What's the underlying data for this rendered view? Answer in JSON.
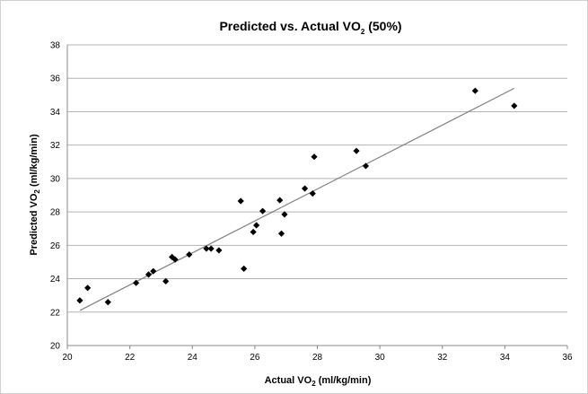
{
  "chart_data": {
    "type": "scatter",
    "title": {
      "main": "Predicted vs. Actual VO",
      "sub": "2",
      "suffix": " (50%)"
    },
    "xlabel": {
      "main": "Actual VO",
      "sub": "2",
      "suffix": " (ml/kg/min)"
    },
    "ylabel": {
      "main": "Predicted VO",
      "sub": "2",
      "suffix": " (ml/kg/min)"
    },
    "xlim": [
      20,
      36
    ],
    "ylim": [
      20,
      38
    ],
    "x_ticks": [
      "20",
      "22",
      "24",
      "26",
      "28",
      "30",
      "32",
      "34",
      "36"
    ],
    "y_ticks": [
      "20",
      "22",
      "24",
      "26",
      "28",
      "30",
      "32",
      "34",
      "36",
      "38"
    ],
    "grid": "horizontal",
    "legend": "none",
    "marker": "diamond",
    "colors": {
      "marker": "#000000",
      "trendline": "#808080",
      "grid": "#b3b3b3",
      "axis": "#888888"
    },
    "series": [
      {
        "points": [
          [
            20.4,
            22.7
          ],
          [
            20.65,
            23.45
          ],
          [
            21.3,
            22.6
          ],
          [
            22.2,
            23.75
          ],
          [
            22.6,
            24.25
          ],
          [
            22.75,
            24.45
          ],
          [
            23.15,
            23.85
          ],
          [
            23.35,
            25.3
          ],
          [
            23.45,
            25.15
          ],
          [
            23.9,
            25.45
          ],
          [
            24.45,
            25.8
          ],
          [
            24.6,
            25.8
          ],
          [
            24.85,
            25.7
          ],
          [
            25.55,
            28.65
          ],
          [
            25.65,
            24.6
          ],
          [
            25.95,
            26.8
          ],
          [
            26.05,
            27.2
          ],
          [
            26.25,
            28.05
          ],
          [
            26.8,
            28.7
          ],
          [
            26.85,
            26.7
          ],
          [
            26.95,
            27.85
          ],
          [
            27.6,
            29.4
          ],
          [
            27.85,
            29.1
          ],
          [
            27.9,
            31.3
          ],
          [
            29.25,
            31.65
          ],
          [
            29.55,
            30.75
          ],
          [
            33.05,
            35.25
          ],
          [
            34.3,
            34.35
          ]
        ]
      }
    ],
    "trendline": {
      "from": [
        20.4,
        22.1
      ],
      "to": [
        34.3,
        35.4
      ]
    }
  }
}
